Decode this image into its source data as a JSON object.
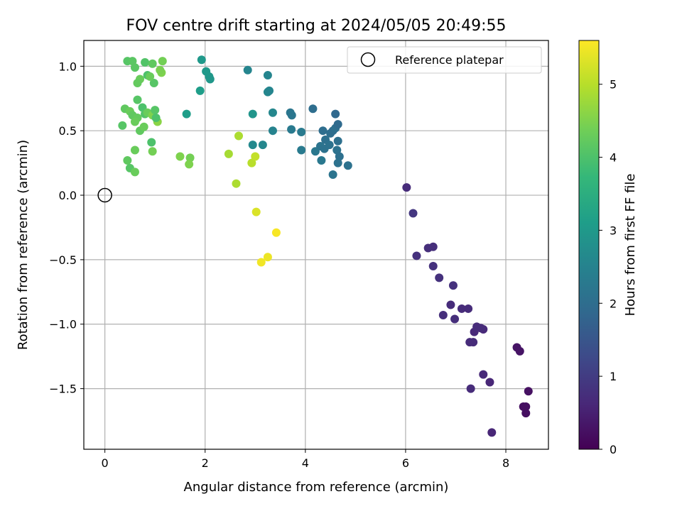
{
  "chart_data": {
    "type": "scatter",
    "title": "FOV centre drift starting at 2024/05/05 20:49:55",
    "xlabel": "Angular distance from reference (arcmin)",
    "ylabel": "Rotation from reference (arcmin)",
    "xlim": [
      -0.42,
      8.85
    ],
    "ylim": [
      -1.97,
      1.2
    ],
    "xticks": [
      0,
      2,
      4,
      6,
      8
    ],
    "xtick_labels": [
      "0",
      "2",
      "4",
      "6",
      "8"
    ],
    "yticks": [
      1.0,
      0.5,
      0.0,
      -0.5,
      -1.0,
      -1.5
    ],
    "ytick_labels": [
      "1.0",
      "0.5",
      "0.0",
      "−0.5",
      "−1.0",
      "−1.5"
    ],
    "grid": true,
    "legend": {
      "placement": "top-right",
      "entries": [
        "Reference platepar"
      ]
    },
    "reference_point": {
      "x": 0,
      "y": 0,
      "label": "Reference platepar"
    },
    "colorbar": {
      "label": "Hours from first FF file",
      "range": [
        0,
        5.6
      ],
      "ticks": [
        0,
        1,
        2,
        3,
        4,
        5
      ],
      "tick_labels": [
        "0",
        "1",
        "2",
        "3",
        "4",
        "5"
      ],
      "colormap": "viridis",
      "colors": [
        "#440154",
        "#482878",
        "#3e4989",
        "#31688e",
        "#26828e",
        "#1f9e89",
        "#35b779",
        "#6ece58",
        "#b5de2b",
        "#fde725"
      ]
    },
    "points": [
      {
        "x": 0.45,
        "y": 1.04,
        "h": 4.1
      },
      {
        "x": 0.55,
        "y": 1.04,
        "h": 4.15
      },
      {
        "x": 0.8,
        "y": 1.03,
        "h": 4.05
      },
      {
        "x": 0.95,
        "y": 1.02,
        "h": 4.2
      },
      {
        "x": 1.15,
        "y": 1.04,
        "h": 4.4
      },
      {
        "x": 0.6,
        "y": 0.99,
        "h": 4.15
      },
      {
        "x": 0.7,
        "y": 0.9,
        "h": 4.3
      },
      {
        "x": 0.85,
        "y": 0.93,
        "h": 4.0
      },
      {
        "x": 0.98,
        "y": 0.87,
        "h": 4.1
      },
      {
        "x": 1.13,
        "y": 0.95,
        "h": 4.5
      },
      {
        "x": 0.65,
        "y": 0.87,
        "h": 4.25
      },
      {
        "x": 0.9,
        "y": 0.92,
        "h": 4.3
      },
      {
        "x": 1.1,
        "y": 0.97,
        "h": 4.45
      },
      {
        "x": 0.65,
        "y": 0.74,
        "h": 4.1
      },
      {
        "x": 0.4,
        "y": 0.67,
        "h": 4.2
      },
      {
        "x": 0.5,
        "y": 0.65,
        "h": 4.3
      },
      {
        "x": 0.55,
        "y": 0.62,
        "h": 4.2
      },
      {
        "x": 0.65,
        "y": 0.6,
        "h": 4.25
      },
      {
        "x": 0.75,
        "y": 0.68,
        "h": 4.0
      },
      {
        "x": 0.8,
        "y": 0.63,
        "h": 4.05
      },
      {
        "x": 0.85,
        "y": 0.64,
        "h": 4.3
      },
      {
        "x": 0.95,
        "y": 0.62,
        "h": 4.5
      },
      {
        "x": 1.0,
        "y": 0.66,
        "h": 4.1
      },
      {
        "x": 1.05,
        "y": 0.57,
        "h": 4.6
      },
      {
        "x": 0.35,
        "y": 0.54,
        "h": 4.1
      },
      {
        "x": 0.6,
        "y": 0.57,
        "h": 4.3
      },
      {
        "x": 0.7,
        "y": 0.5,
        "h": 4.2
      },
      {
        "x": 0.78,
        "y": 0.53,
        "h": 4.3
      },
      {
        "x": 1.02,
        "y": 0.6,
        "h": 4.0
      },
      {
        "x": 0.93,
        "y": 0.41,
        "h": 4.0
      },
      {
        "x": 0.6,
        "y": 0.35,
        "h": 4.3
      },
      {
        "x": 0.95,
        "y": 0.34,
        "h": 4.4
      },
      {
        "x": 0.45,
        "y": 0.27,
        "h": 4.2
      },
      {
        "x": 0.5,
        "y": 0.21,
        "h": 4.1
      },
      {
        "x": 0.6,
        "y": 0.18,
        "h": 4.3
      },
      {
        "x": 1.5,
        "y": 0.3,
        "h": 4.5
      },
      {
        "x": 1.7,
        "y": 0.29,
        "h": 4.4
      },
      {
        "x": 1.68,
        "y": 0.24,
        "h": 4.5
      },
      {
        "x": 1.63,
        "y": 0.63,
        "h": 3.1
      },
      {
        "x": 1.93,
        "y": 1.05,
        "h": 3.0
      },
      {
        "x": 2.02,
        "y": 0.96,
        "h": 3.0
      },
      {
        "x": 2.08,
        "y": 0.92,
        "h": 3.0
      },
      {
        "x": 2.1,
        "y": 0.9,
        "h": 2.95
      },
      {
        "x": 1.9,
        "y": 0.81,
        "h": 3.1
      },
      {
        "x": 2.85,
        "y": 0.97,
        "h": 2.55
      },
      {
        "x": 2.95,
        "y": 0.63,
        "h": 2.9
      },
      {
        "x": 3.25,
        "y": 0.93,
        "h": 2.55
      },
      {
        "x": 3.25,
        "y": 0.8,
        "h": 2.6
      },
      {
        "x": 3.28,
        "y": 0.81,
        "h": 2.55
      },
      {
        "x": 3.35,
        "y": 0.64,
        "h": 2.6
      },
      {
        "x": 3.35,
        "y": 0.5,
        "h": 2.5
      },
      {
        "x": 2.95,
        "y": 0.39,
        "h": 2.65
      },
      {
        "x": 3.15,
        "y": 0.39,
        "h": 2.6
      },
      {
        "x": 3.7,
        "y": 0.64,
        "h": 2.2
      },
      {
        "x": 3.73,
        "y": 0.62,
        "h": 2.2
      },
      {
        "x": 3.72,
        "y": 0.51,
        "h": 2.3
      },
      {
        "x": 3.92,
        "y": 0.49,
        "h": 2.3
      },
      {
        "x": 3.92,
        "y": 0.35,
        "h": 2.3
      },
      {
        "x": 4.15,
        "y": 0.67,
        "h": 2.0
      },
      {
        "x": 4.2,
        "y": 0.34,
        "h": 2.25
      },
      {
        "x": 4.3,
        "y": 0.38,
        "h": 2.15
      },
      {
        "x": 4.32,
        "y": 0.27,
        "h": 2.25
      },
      {
        "x": 4.35,
        "y": 0.5,
        "h": 2.0
      },
      {
        "x": 4.4,
        "y": 0.43,
        "h": 2.05
      },
      {
        "x": 4.38,
        "y": 0.36,
        "h": 2.1
      },
      {
        "x": 4.5,
        "y": 0.48,
        "h": 2.0
      },
      {
        "x": 4.48,
        "y": 0.39,
        "h": 2.1
      },
      {
        "x": 4.55,
        "y": 0.5,
        "h": 2.0
      },
      {
        "x": 4.6,
        "y": 0.52,
        "h": 2.05
      },
      {
        "x": 4.6,
        "y": 0.63,
        "h": 1.9
      },
      {
        "x": 4.65,
        "y": 0.55,
        "h": 1.95
      },
      {
        "x": 4.65,
        "y": 0.42,
        "h": 2.05
      },
      {
        "x": 4.63,
        "y": 0.35,
        "h": 2.1
      },
      {
        "x": 4.68,
        "y": 0.3,
        "h": 2.05
      },
      {
        "x": 4.65,
        "y": 0.25,
        "h": 2.1
      },
      {
        "x": 4.85,
        "y": 0.23,
        "h": 2.1
      },
      {
        "x": 4.55,
        "y": 0.16,
        "h": 2.15
      },
      {
        "x": 2.47,
        "y": 0.32,
        "h": 4.85
      },
      {
        "x": 2.67,
        "y": 0.46,
        "h": 4.9
      },
      {
        "x": 2.93,
        "y": 0.25,
        "h": 5.0
      },
      {
        "x": 3.0,
        "y": 0.3,
        "h": 5.1
      },
      {
        "x": 2.62,
        "y": 0.09,
        "h": 4.9
      },
      {
        "x": 3.02,
        "y": -0.13,
        "h": 5.3
      },
      {
        "x": 3.42,
        "y": -0.29,
        "h": 5.55
      },
      {
        "x": 3.25,
        "y": -0.48,
        "h": 5.45
      },
      {
        "x": 3.12,
        "y": -0.52,
        "h": 5.5
      },
      {
        "x": 6.02,
        "y": 0.06,
        "h": 0.7
      },
      {
        "x": 6.15,
        "y": -0.14,
        "h": 0.9
      },
      {
        "x": 6.22,
        "y": -0.47,
        "h": 0.8
      },
      {
        "x": 6.45,
        "y": -0.41,
        "h": 0.75
      },
      {
        "x": 6.55,
        "y": -0.4,
        "h": 0.75
      },
      {
        "x": 6.55,
        "y": -0.55,
        "h": 0.8
      },
      {
        "x": 6.67,
        "y": -0.64,
        "h": 0.8
      },
      {
        "x": 6.95,
        "y": -0.7,
        "h": 0.8
      },
      {
        "x": 6.75,
        "y": -0.93,
        "h": 0.75
      },
      {
        "x": 6.9,
        "y": -0.85,
        "h": 0.7
      },
      {
        "x": 6.98,
        "y": -0.96,
        "h": 0.75
      },
      {
        "x": 7.12,
        "y": -0.88,
        "h": 0.7
      },
      {
        "x": 7.25,
        "y": -0.88,
        "h": 0.7
      },
      {
        "x": 7.37,
        "y": -1.06,
        "h": 0.65
      },
      {
        "x": 7.42,
        "y": -1.02,
        "h": 0.7
      },
      {
        "x": 7.55,
        "y": -1.04,
        "h": 0.65
      },
      {
        "x": 7.5,
        "y": -1.03,
        "h": 0.7
      },
      {
        "x": 7.28,
        "y": -1.14,
        "h": 0.7
      },
      {
        "x": 7.35,
        "y": -1.14,
        "h": 0.7
      },
      {
        "x": 7.55,
        "y": -1.39,
        "h": 0.65
      },
      {
        "x": 7.3,
        "y": -1.5,
        "h": 0.7
      },
      {
        "x": 7.68,
        "y": -1.45,
        "h": 0.6
      },
      {
        "x": 7.72,
        "y": -1.84,
        "h": 0.6
      },
      {
        "x": 8.22,
        "y": -1.18,
        "h": 0.3
      },
      {
        "x": 8.28,
        "y": -1.21,
        "h": 0.3
      },
      {
        "x": 8.35,
        "y": -1.64,
        "h": 0.2
      },
      {
        "x": 8.4,
        "y": -1.64,
        "h": 0.2
      },
      {
        "x": 8.4,
        "y": -1.69,
        "h": 0.2
      },
      {
        "x": 8.45,
        "y": -1.52,
        "h": 0.25
      }
    ]
  }
}
